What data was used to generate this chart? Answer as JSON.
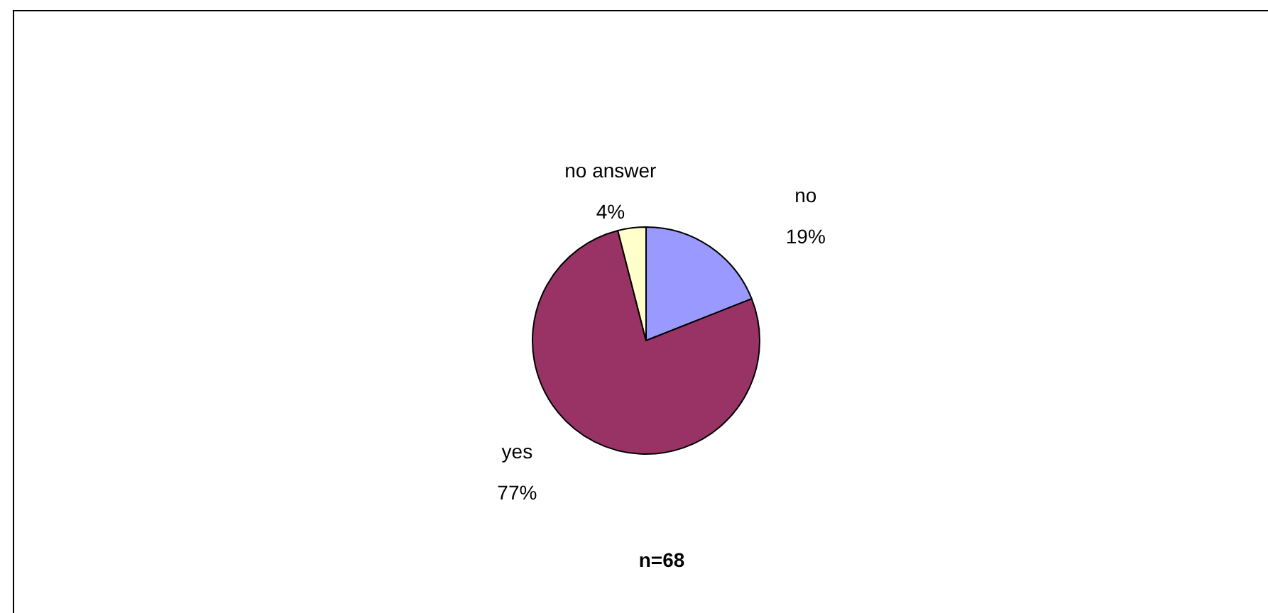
{
  "chart_data": {
    "type": "pie",
    "categories": [
      "no",
      "yes",
      "no answer"
    ],
    "values": [
      19,
      77,
      4
    ],
    "colors": [
      "#9999ff",
      "#993366",
      "#ffffcc"
    ],
    "value_labels": [
      "19%",
      "77%",
      "4%"
    ],
    "annotations": [
      "n=68"
    ]
  }
}
